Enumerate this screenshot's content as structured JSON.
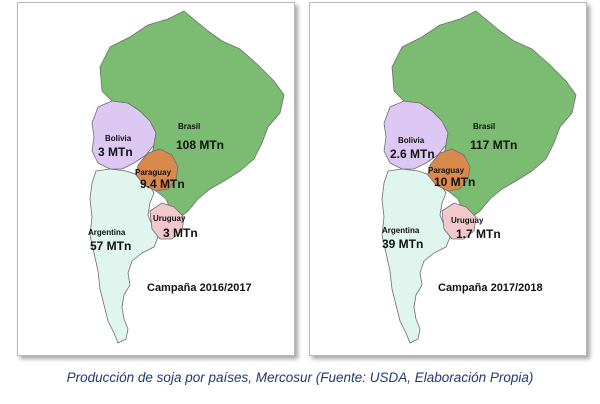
{
  "colors": {
    "brasil": "#7cbb72",
    "bolivia": "#dcc8f2",
    "paraguay": "#d9894c",
    "uruguay": "#f2c8cc",
    "argentina": "#dff5ee",
    "caption": "#1f3a73"
  },
  "maps": [
    {
      "season": "Campaña 2016/2017",
      "countries": {
        "brasil": {
          "name": "Brasil",
          "value": "108 MTn"
        },
        "bolivia": {
          "name": "Bolivia",
          "value": "3 MTn"
        },
        "paraguay": {
          "name": "Paraguay",
          "value": "9.4 MTn"
        },
        "uruguay": {
          "name": "Uruguay",
          "value": "3 MTn"
        },
        "argentina": {
          "name": "Argentina",
          "value": "57 MTn"
        }
      }
    },
    {
      "season": "Campaña 2017/2018",
      "countries": {
        "brasil": {
          "name": "Brasil",
          "value": "117 MTn"
        },
        "bolivia": {
          "name": "Bolivia",
          "value": "2.6 MTn"
        },
        "paraguay": {
          "name": "Paraguay",
          "value": "10 MTn"
        },
        "uruguay": {
          "name": "Uruguay",
          "value": "1.7 MTn"
        },
        "argentina": {
          "name": "Argentina",
          "value": "39 MTn"
        }
      }
    }
  ],
  "caption": "Producción de soja por países, Mercosur  (Fuente: USDA, Elaboración Propia)"
}
